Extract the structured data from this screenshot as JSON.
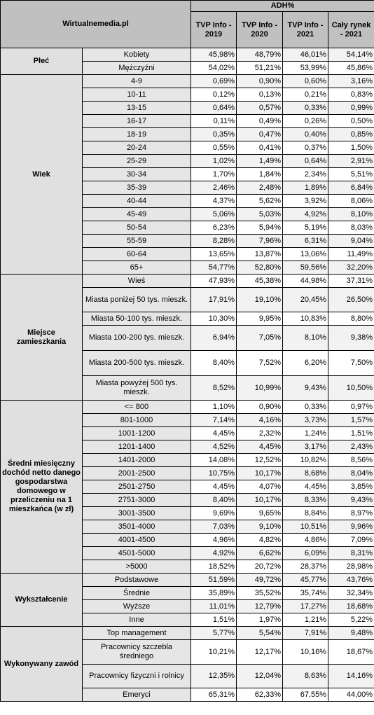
{
  "header": {
    "brand": "Wirtualnemedia.pl",
    "metric": "ADH%",
    "columns": [
      "TVP Info - 2019",
      "TVP Info - 2020",
      "TVP Info - 2021",
      "Cały rynek - 2021"
    ]
  },
  "groups": [
    {
      "title": "Płeć",
      "rows": [
        {
          "label": "Kobiety",
          "values": [
            "45,98%",
            "48,79%",
            "46,01%",
            "54,14%"
          ]
        },
        {
          "label": "Mężczyźni",
          "values": [
            "54,02%",
            "51,21%",
            "53,99%",
            "45,86%"
          ]
        }
      ]
    },
    {
      "title": "Wiek",
      "rows": [
        {
          "label": "4-9",
          "values": [
            "0,69%",
            "0,90%",
            "0,60%",
            "3,16%"
          ]
        },
        {
          "label": "10-11",
          "values": [
            "0,12%",
            "0,13%",
            "0,21%",
            "0,83%"
          ]
        },
        {
          "label": "13-15",
          "values": [
            "0,64%",
            "0,57%",
            "0,33%",
            "0,99%"
          ]
        },
        {
          "label": "16-17",
          "values": [
            "0,11%",
            "0,49%",
            "0,26%",
            "0,50%"
          ]
        },
        {
          "label": "18-19",
          "values": [
            "0,35%",
            "0,47%",
            "0,40%",
            "0,85%"
          ]
        },
        {
          "label": "20-24",
          "values": [
            "0,55%",
            "0,41%",
            "0,37%",
            "1,50%"
          ]
        },
        {
          "label": "25-29",
          "values": [
            "1,02%",
            "1,49%",
            "0,64%",
            "2,91%"
          ]
        },
        {
          "label": "30-34",
          "values": [
            "1,70%",
            "1,84%",
            "2,34%",
            "5,51%"
          ]
        },
        {
          "label": "35-39",
          "values": [
            "2,46%",
            "2,48%",
            "1,89%",
            "6,84%"
          ]
        },
        {
          "label": "40-44",
          "values": [
            "4,37%",
            "5,62%",
            "3,92%",
            "8,06%"
          ]
        },
        {
          "label": "45-49",
          "values": [
            "5,06%",
            "5,03%",
            "4,92%",
            "8,10%"
          ]
        },
        {
          "label": "50-54",
          "values": [
            "6,23%",
            "5,94%",
            "5,19%",
            "8,03%"
          ]
        },
        {
          "label": "55-59",
          "values": [
            "8,28%",
            "7,96%",
            "6,31%",
            "9,04%"
          ]
        },
        {
          "label": "60-64",
          "values": [
            "13,65%",
            "13,87%",
            "13,06%",
            "11,49%"
          ]
        },
        {
          "label": "65+",
          "values": [
            "54,77%",
            "52,80%",
            "59,56%",
            "32,20%"
          ]
        }
      ]
    },
    {
      "title": "Miejsce zamieszkania",
      "rows": [
        {
          "label": "Wieś",
          "values": [
            "47,93%",
            "45,38%",
            "44,98%",
            "37,31%"
          ]
        },
        {
          "label": "Miasta poniżej 50 tys. mieszk.",
          "values": [
            "17,91%",
            "19,10%",
            "20,45%",
            "26,50%"
          ]
        },
        {
          "label": "Miasta 50-100 tys. mieszk.",
          "values": [
            "10,30%",
            "9,95%",
            "10,83%",
            "8,80%"
          ]
        },
        {
          "label": "Miasta 100-200 tys. mieszk.",
          "values": [
            "6,94%",
            "7,05%",
            "8,10%",
            "9,38%"
          ]
        },
        {
          "label": "Miasta 200-500 tys. mieszk.",
          "values": [
            "8,40%",
            "7,52%",
            "6,20%",
            "7,50%"
          ]
        },
        {
          "label": "Miasta powyżej 500 tys. mieszk.",
          "values": [
            "8,52%",
            "10,99%",
            "9,43%",
            "10,50%"
          ]
        }
      ]
    },
    {
      "title": "Średni miesięczny dochód netto danego gospodarstwa domowego w przeliczeniu na 1 mieszkańca (w zł)",
      "rows": [
        {
          "label": "<= 800",
          "values": [
            "1,10%",
            "0,90%",
            "0,33%",
            "0,97%"
          ]
        },
        {
          "label": "801-1000",
          "values": [
            "7,14%",
            "4,16%",
            "3,73%",
            "1,57%"
          ]
        },
        {
          "label": "1001-1200",
          "values": [
            "4,45%",
            "2,32%",
            "1,24%",
            "1,51%"
          ]
        },
        {
          "label": "1201-1400",
          "values": [
            "4,52%",
            "4,45%",
            "3,17%",
            "2,43%"
          ]
        },
        {
          "label": "1401-2000",
          "values": [
            "14,08%",
            "12,52%",
            "10,82%",
            "8,56%"
          ]
        },
        {
          "label": "2001-2500",
          "values": [
            "10,75%",
            "10,17%",
            "8,68%",
            "8,04%"
          ]
        },
        {
          "label": "2501-2750",
          "values": [
            "4,45%",
            "4,07%",
            "4,45%",
            "3,85%"
          ]
        },
        {
          "label": "2751-3000",
          "values": [
            "8,40%",
            "10,17%",
            "8,33%",
            "9,43%"
          ]
        },
        {
          "label": "3001-3500",
          "values": [
            "9,69%",
            "9,65%",
            "8,84%",
            "8,97%"
          ]
        },
        {
          "label": "3501-4000",
          "values": [
            "7,03%",
            "9,10%",
            "10,51%",
            "9,96%"
          ]
        },
        {
          "label": "4001-4500",
          "values": [
            "4,96%",
            "4,82%",
            "4,86%",
            "7,09%"
          ]
        },
        {
          "label": "4501-5000",
          "values": [
            "4,92%",
            "6,62%",
            "6,09%",
            "8,31%"
          ]
        },
        {
          "label": ">5000",
          "values": [
            "18,52%",
            "20,72%",
            "28,37%",
            "28,98%"
          ]
        }
      ]
    },
    {
      "title": "Wykształcenie",
      "rows": [
        {
          "label": "Podstawowe",
          "values": [
            "51,59%",
            "49,72%",
            "45,77%",
            "43,76%"
          ]
        },
        {
          "label": "Średnie",
          "values": [
            "35,89%",
            "35,52%",
            "35,74%",
            "32,34%"
          ]
        },
        {
          "label": "Wyższe",
          "values": [
            "11,01%",
            "12,79%",
            "17,27%",
            "18,68%"
          ]
        },
        {
          "label": "Inne",
          "values": [
            "1,51%",
            "1,97%",
            "1,21%",
            "5,22%"
          ]
        }
      ]
    },
    {
      "title": "Wykonywany zawód",
      "rows": [
        {
          "label": "Top management",
          "values": [
            "5,77%",
            "5,54%",
            "7,91%",
            "9,48%"
          ]
        },
        {
          "label": "Pracownicy szczebla średniego",
          "values": [
            "10,21%",
            "12,17%",
            "10,16%",
            "18,67%"
          ]
        },
        {
          "label": "Pracownicy fizyczni i rolnicy",
          "values": [
            "12,35%",
            "12,04%",
            "8,63%",
            "14,16%"
          ]
        },
        {
          "label": "Emeryci",
          "values": [
            "65,31%",
            "62,33%",
            "67,55%",
            "44,00%"
          ]
        }
      ]
    }
  ],
  "colors": {
    "header_bg": "#c0c0c0",
    "group_bg": "#e0e0e0",
    "category_bg": "#e6e6e6",
    "odd_value_bg": "#f2f2f2",
    "even_value_bg": "#ffffff"
  }
}
